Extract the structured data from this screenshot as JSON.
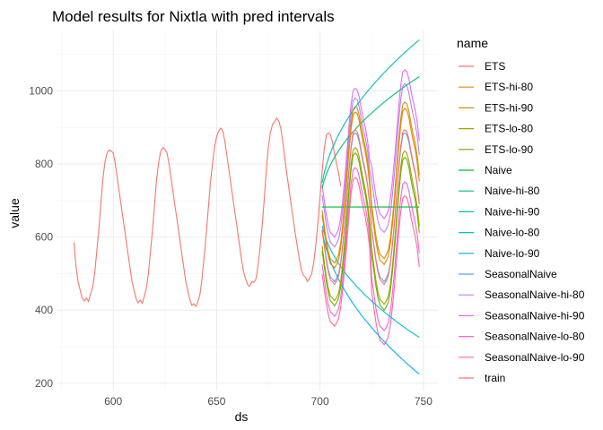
{
  "chart_data": {
    "type": "line",
    "title": "Model results for Nixtla with pred intervals",
    "xlabel": "ds",
    "ylabel": "value",
    "xlim": [
      573,
      757
    ],
    "ylim": [
      180,
      1165
    ],
    "x_ticks": [
      600,
      650,
      700,
      750
    ],
    "y_ticks": [
      200,
      400,
      600,
      800,
      1000
    ],
    "grid": true,
    "legend": {
      "title": "name",
      "position": "right"
    },
    "series": [
      {
        "name": "ETS",
        "color": "#F8766D"
      },
      {
        "name": "ETS-hi-80",
        "color": "#E58700"
      },
      {
        "name": "ETS-hi-90",
        "color": "#C99800"
      },
      {
        "name": "ETS-lo-80",
        "color": "#A3A500"
      },
      {
        "name": "ETS-lo-90",
        "color": "#6BB100"
      },
      {
        "name": "Naive",
        "color": "#00BA38"
      },
      {
        "name": "Naive-hi-80",
        "color": "#00BF7D"
      },
      {
        "name": "Naive-hi-90",
        "color": "#00C0AF"
      },
      {
        "name": "Naive-lo-80",
        "color": "#00BCD8"
      },
      {
        "name": "Naive-lo-90",
        "color": "#00B0F6"
      },
      {
        "name": "SeasonalNaive",
        "color": "#619CFF"
      },
      {
        "name": "SeasonalNaive-hi-80",
        "color": "#B983FF"
      },
      {
        "name": "SeasonalNaive-hi-90",
        "color": "#E76BF3"
      },
      {
        "name": "SeasonalNaive-lo-80",
        "color": "#FD61D1"
      },
      {
        "name": "SeasonalNaive-lo-90",
        "color": "#FF67A4"
      },
      {
        "name": "train",
        "color": "#F8766D"
      }
    ],
    "train": {
      "x_start": 581,
      "values": [
        585,
        520,
        478,
        455,
        432,
        425,
        433,
        424,
        445,
        462,
        500,
        560,
        620,
        690,
        760,
        805,
        830,
        838,
        835,
        830,
        800,
        760,
        720,
        680,
        640,
        600,
        560,
        520,
        480,
        455,
        432,
        420,
        428,
        418,
        438,
        460,
        500,
        560,
        620,
        690,
        760,
        805,
        835,
        845,
        840,
        830,
        800,
        760,
        720,
        680,
        640,
        600,
        560,
        520,
        480,
        455,
        430,
        413,
        418,
        410,
        425,
        445,
        490,
        550,
        610,
        680,
        750,
        800,
        845,
        875,
        890,
        898,
        890,
        860,
        820,
        780,
        740,
        700,
        660,
        620,
        580,
        540,
        505,
        485,
        470,
        465,
        478,
        476,
        485,
        520,
        570,
        630,
        700,
        780,
        845,
        885,
        908,
        915,
        925,
        918,
        898,
        860,
        815,
        770,
        730,
        690,
        650,
        610,
        575,
        540,
        510,
        495,
        490,
        478,
        488,
        500,
        530,
        580,
        640,
        710,
        780,
        840,
        878,
        885,
        880,
        860,
        828,
        800,
        775,
        740
      ]
    },
    "forecast": {
      "x_start": 701,
      "x_end": 748,
      "period": 24,
      "base_values": [
        620,
        580,
        540,
        510,
        490,
        485,
        478,
        487,
        500,
        530,
        580,
        640,
        710,
        780,
        840,
        878,
        885,
        880,
        860,
        828,
        800,
        775,
        740,
        690
      ],
      "naive_level": 682
    }
  }
}
